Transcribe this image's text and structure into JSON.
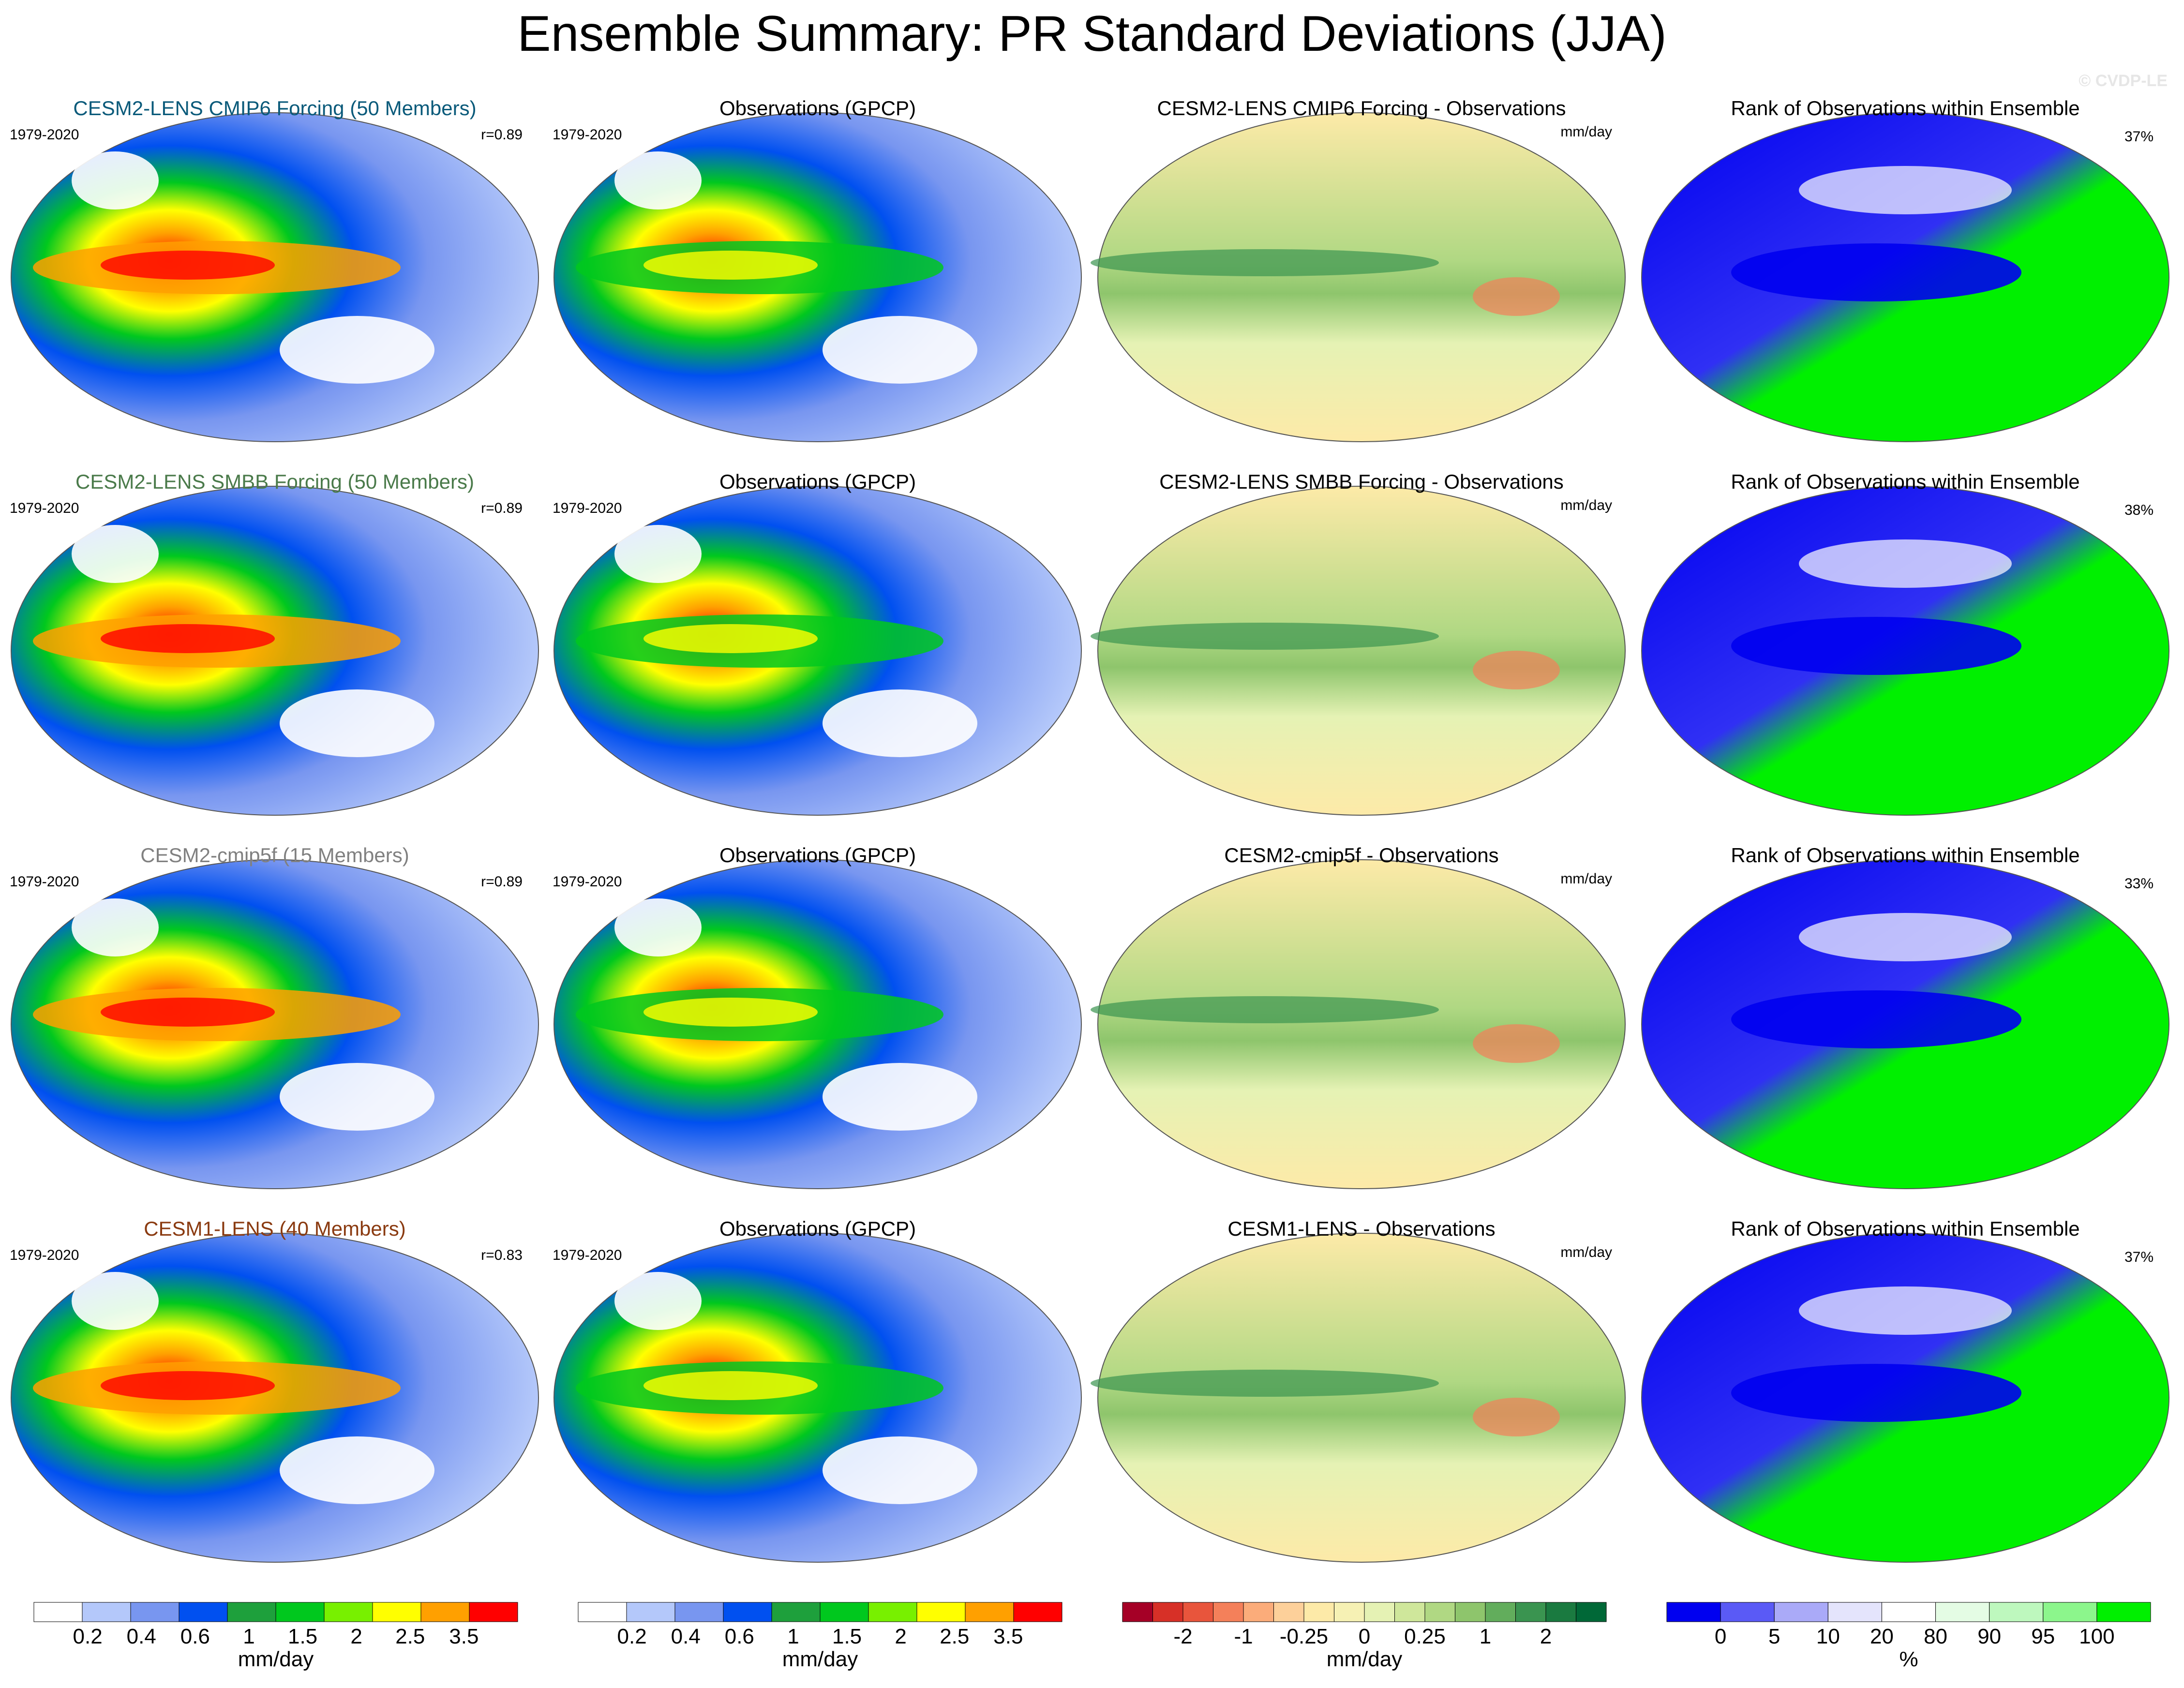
{
  "title": "Ensemble Summary: PR Standard Deviations (JJA)",
  "credit": "© CVDP-LE",
  "chart_data": {
    "type": "map-panel-grid",
    "season": "JJA",
    "variable": "PR standard deviation",
    "colors": {
      "std": [
        "#ffffff",
        "#b4c8fa",
        "#7896f0",
        "#0050f0",
        "#1ea03c",
        "#00c81e",
        "#78f000",
        "#ffff00",
        "#ffa000",
        "#ff0000"
      ],
      "diff": [
        "#a50026",
        "#d73027",
        "#e8553c",
        "#f4805a",
        "#fbac7a",
        "#fdd09a",
        "#fdeaa8",
        "#f6f1b4",
        "#e5f2b4",
        "#cfe79b",
        "#b0d883",
        "#8ec56c",
        "#62ad5c",
        "#3a9450",
        "#1a7a40",
        "#006837"
      ],
      "rank": [
        "#0000f0",
        "#5a5af6",
        "#aaaaf8",
        "#e4e4fc",
        "#ffffff",
        "#e4fce4",
        "#bef8be",
        "#8cf68c",
        "#00f000"
      ],
      "title_cmip6": "#0a5a7a",
      "title_smbb": "#4a7a4a",
      "title_cmip5f": "#808080",
      "title_cesm1": "#8a3a10"
    },
    "rows": [
      {
        "model": {
          "title": "CESM2-LENS CMIP6 Forcing (50 Members)",
          "years": "1979-2020",
          "r": "r=0.89"
        },
        "obs": {
          "title": "Observations (GPCP)",
          "years": "1979-2020"
        },
        "diff": {
          "title": "CESM2-LENS CMIP6 Forcing - Observations",
          "units": "mm/day"
        },
        "rank": {
          "title": "Rank of Observations within Ensemble",
          "pct": "37%"
        }
      },
      {
        "model": {
          "title": "CESM2-LENS SMBB Forcing (50 Members)",
          "years": "1979-2020",
          "r": "r=0.89"
        },
        "obs": {
          "title": "Observations (GPCP)",
          "years": "1979-2020"
        },
        "diff": {
          "title": "CESM2-LENS SMBB Forcing - Observations",
          "units": "mm/day"
        },
        "rank": {
          "title": "Rank of Observations within Ensemble",
          "pct": "38%"
        }
      },
      {
        "model": {
          "title": "CESM2-cmip5f (15 Members)",
          "years": "1979-2020",
          "r": "r=0.89"
        },
        "obs": {
          "title": "Observations (GPCP)",
          "years": "1979-2020"
        },
        "diff": {
          "title": "CESM2-cmip5f - Observations",
          "units": "mm/day"
        },
        "rank": {
          "title": "Rank of Observations within Ensemble",
          "pct": "33%"
        }
      },
      {
        "model": {
          "title": "CESM1-LENS (40 Members)",
          "years": "1979-2020",
          "r": "r=0.83"
        },
        "obs": {
          "title": "Observations (GPCP)",
          "years": "1979-2020"
        },
        "diff": {
          "title": "CESM1-LENS - Observations",
          "units": "mm/day"
        },
        "rank": {
          "title": "Rank of Observations within Ensemble",
          "pct": "37%"
        }
      }
    ],
    "colorbars": [
      {
        "name": "model-std",
        "labels": [
          "0.2",
          "0.4",
          "0.6",
          "1",
          "1.5",
          "2",
          "2.5",
          "3.5"
        ],
        "units": "mm/day"
      },
      {
        "name": "obs-std",
        "labels": [
          "0.2",
          "0.4",
          "0.6",
          "1",
          "1.5",
          "2",
          "2.5",
          "3.5"
        ],
        "units": "mm/day"
      },
      {
        "name": "difference",
        "labels": [
          "-2",
          "-1",
          "-0.25",
          "0",
          "0.25",
          "1",
          "2"
        ],
        "units": "mm/day"
      },
      {
        "name": "rank",
        "labels": [
          "0",
          "5",
          "10",
          "20",
          "80",
          "90",
          "95",
          "100"
        ],
        "units": "%"
      }
    ]
  }
}
